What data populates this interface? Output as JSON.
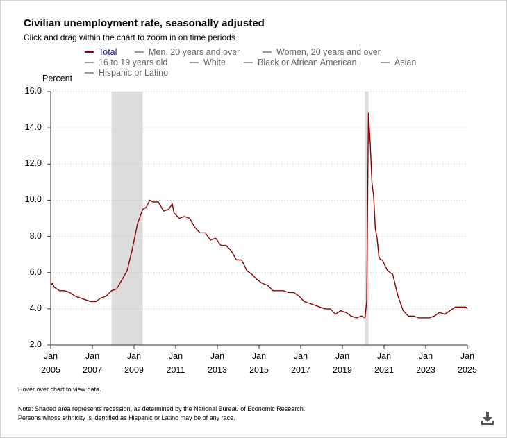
{
  "title": "Civilian unemployment rate, seasonally adjusted",
  "subtitle": "Click and drag within the chart to zoom in on time periods",
  "legend": [
    {
      "label": "Total",
      "color": "#8b0000",
      "active": true
    },
    {
      "label": "Men, 20 years and over",
      "color": "#999999",
      "active": false
    },
    {
      "label": "Women, 20 years and over",
      "color": "#999999",
      "active": false
    },
    {
      "label": "16 to 19 years old",
      "color": "#999999",
      "active": false
    },
    {
      "label": "White",
      "color": "#999999",
      "active": false
    },
    {
      "label": "Black or African American",
      "color": "#999999",
      "active": false
    },
    {
      "label": "Asian",
      "color": "#999999",
      "active": false
    },
    {
      "label": "Hispanic or Latino",
      "color": "#999999",
      "active": false
    }
  ],
  "footer": {
    "hover": "Hover over chart to view data.",
    "note1": "Note: Shaded area represents recession, as determined by the National Bureau of Economic Research.",
    "note2": "Persons whose ethnicity is identified as Hispanic or Latino may be of any race."
  },
  "icons": {
    "download": "download-icon"
  },
  "chart_data": {
    "type": "line",
    "ylabel": "Percent",
    "ylim": [
      2.0,
      16.0
    ],
    "yticks": [
      "16.0",
      "14.0",
      "12.0",
      "10.0",
      "8.0",
      "6.0",
      "4.0",
      "2.0"
    ],
    "xticks": [
      [
        "Jan",
        "2005"
      ],
      [
        "Jan",
        "2007"
      ],
      [
        "Jan",
        "2009"
      ],
      [
        "Jan",
        "2011"
      ],
      [
        "Jan",
        "2013"
      ],
      [
        "Jan",
        "2015"
      ],
      [
        "Jan",
        "2017"
      ],
      [
        "Jan",
        "2019"
      ],
      [
        "Jan",
        "2021"
      ],
      [
        "Jan",
        "2023"
      ],
      [
        "Jan",
        "2025"
      ]
    ],
    "xlim": [
      "2005-01",
      "2025-01"
    ],
    "grid": true,
    "legend_position": "top",
    "recessions": [
      [
        "2007-12",
        "2009-06"
      ],
      [
        "2020-02",
        "2020-04"
      ]
    ],
    "series": [
      {
        "name": "Total",
        "color": "#8b0000",
        "points": [
          [
            "2005-01",
            5.3
          ],
          [
            "2005-02",
            5.4
          ],
          [
            "2005-03",
            5.2
          ],
          [
            "2005-06",
            5.0
          ],
          [
            "2005-09",
            5.0
          ],
          [
            "2005-12",
            4.9
          ],
          [
            "2006-03",
            4.7
          ],
          [
            "2006-06",
            4.6
          ],
          [
            "2006-09",
            4.5
          ],
          [
            "2006-12",
            4.4
          ],
          [
            "2007-03",
            4.4
          ],
          [
            "2007-06",
            4.6
          ],
          [
            "2007-09",
            4.7
          ],
          [
            "2007-12",
            5.0
          ],
          [
            "2008-03",
            5.1
          ],
          [
            "2008-06",
            5.6
          ],
          [
            "2008-09",
            6.1
          ],
          [
            "2008-12",
            7.3
          ],
          [
            "2009-03",
            8.7
          ],
          [
            "2009-06",
            9.5
          ],
          [
            "2009-08",
            9.6
          ],
          [
            "2009-10",
            10.0
          ],
          [
            "2009-12",
            9.9
          ],
          [
            "2010-03",
            9.9
          ],
          [
            "2010-06",
            9.4
          ],
          [
            "2010-09",
            9.5
          ],
          [
            "2010-11",
            9.8
          ],
          [
            "2010-12",
            9.3
          ],
          [
            "2011-03",
            9.0
          ],
          [
            "2011-06",
            9.1
          ],
          [
            "2011-09",
            9.0
          ],
          [
            "2011-12",
            8.5
          ],
          [
            "2012-03",
            8.2
          ],
          [
            "2012-06",
            8.2
          ],
          [
            "2012-09",
            7.8
          ],
          [
            "2012-12",
            7.9
          ],
          [
            "2013-03",
            7.5
          ],
          [
            "2013-06",
            7.5
          ],
          [
            "2013-09",
            7.2
          ],
          [
            "2013-12",
            6.7
          ],
          [
            "2014-03",
            6.7
          ],
          [
            "2014-06",
            6.1
          ],
          [
            "2014-09",
            5.9
          ],
          [
            "2014-12",
            5.6
          ],
          [
            "2015-03",
            5.4
          ],
          [
            "2015-06",
            5.3
          ],
          [
            "2015-09",
            5.0
          ],
          [
            "2015-12",
            5.0
          ],
          [
            "2016-03",
            5.0
          ],
          [
            "2016-06",
            4.9
          ],
          [
            "2016-09",
            4.9
          ],
          [
            "2016-12",
            4.7
          ],
          [
            "2017-03",
            4.4
          ],
          [
            "2017-06",
            4.3
          ],
          [
            "2017-09",
            4.2
          ],
          [
            "2017-12",
            4.1
          ],
          [
            "2018-03",
            4.0
          ],
          [
            "2018-06",
            4.0
          ],
          [
            "2018-09",
            3.7
          ],
          [
            "2018-12",
            3.9
          ],
          [
            "2019-03",
            3.8
          ],
          [
            "2019-06",
            3.6
          ],
          [
            "2019-09",
            3.5
          ],
          [
            "2019-12",
            3.6
          ],
          [
            "2020-02",
            3.5
          ],
          [
            "2020-03",
            4.4
          ],
          [
            "2020-04",
            14.8
          ],
          [
            "2020-05",
            13.2
          ],
          [
            "2020-06",
            11.0
          ],
          [
            "2020-07",
            10.2
          ],
          [
            "2020-08",
            8.4
          ],
          [
            "2020-09",
            7.9
          ],
          [
            "2020-10",
            6.9
          ],
          [
            "2020-11",
            6.7
          ],
          [
            "2020-12",
            6.7
          ],
          [
            "2021-03",
            6.1
          ],
          [
            "2021-06",
            5.9
          ],
          [
            "2021-09",
            4.7
          ],
          [
            "2021-12",
            3.9
          ],
          [
            "2022-03",
            3.6
          ],
          [
            "2022-06",
            3.6
          ],
          [
            "2022-09",
            3.5
          ],
          [
            "2022-12",
            3.5
          ],
          [
            "2023-03",
            3.5
          ],
          [
            "2023-06",
            3.6
          ],
          [
            "2023-09",
            3.8
          ],
          [
            "2023-12",
            3.7
          ],
          [
            "2024-03",
            3.9
          ],
          [
            "2024-06",
            4.1
          ],
          [
            "2024-09",
            4.1
          ],
          [
            "2024-12",
            4.1
          ],
          [
            "2025-01",
            4.0
          ]
        ]
      }
    ]
  }
}
